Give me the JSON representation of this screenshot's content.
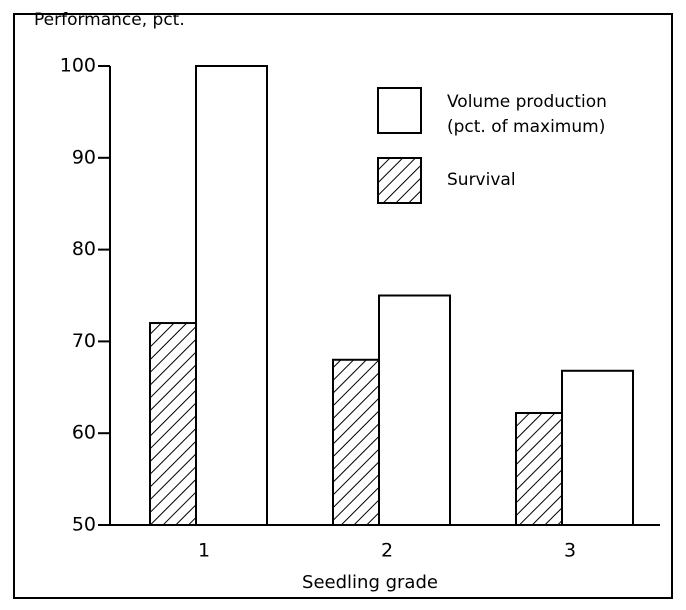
{
  "chart_data": {
    "type": "bar",
    "y_label": "Performance, pct.",
    "x_label": "Seedling grade",
    "categories": [
      "1",
      "2",
      "3"
    ],
    "series": [
      {
        "name": "Survival",
        "color": "hatched",
        "values": [
          72,
          68,
          62.2
        ]
      },
      {
        "name": "Volume production (pct. of maximum)",
        "color": "white",
        "values": [
          100,
          75,
          66.8
        ]
      }
    ],
    "ylim": [
      50,
      100
    ],
    "yticks": [
      50,
      60,
      70,
      80,
      90,
      100
    ],
    "grid": false
  }
}
